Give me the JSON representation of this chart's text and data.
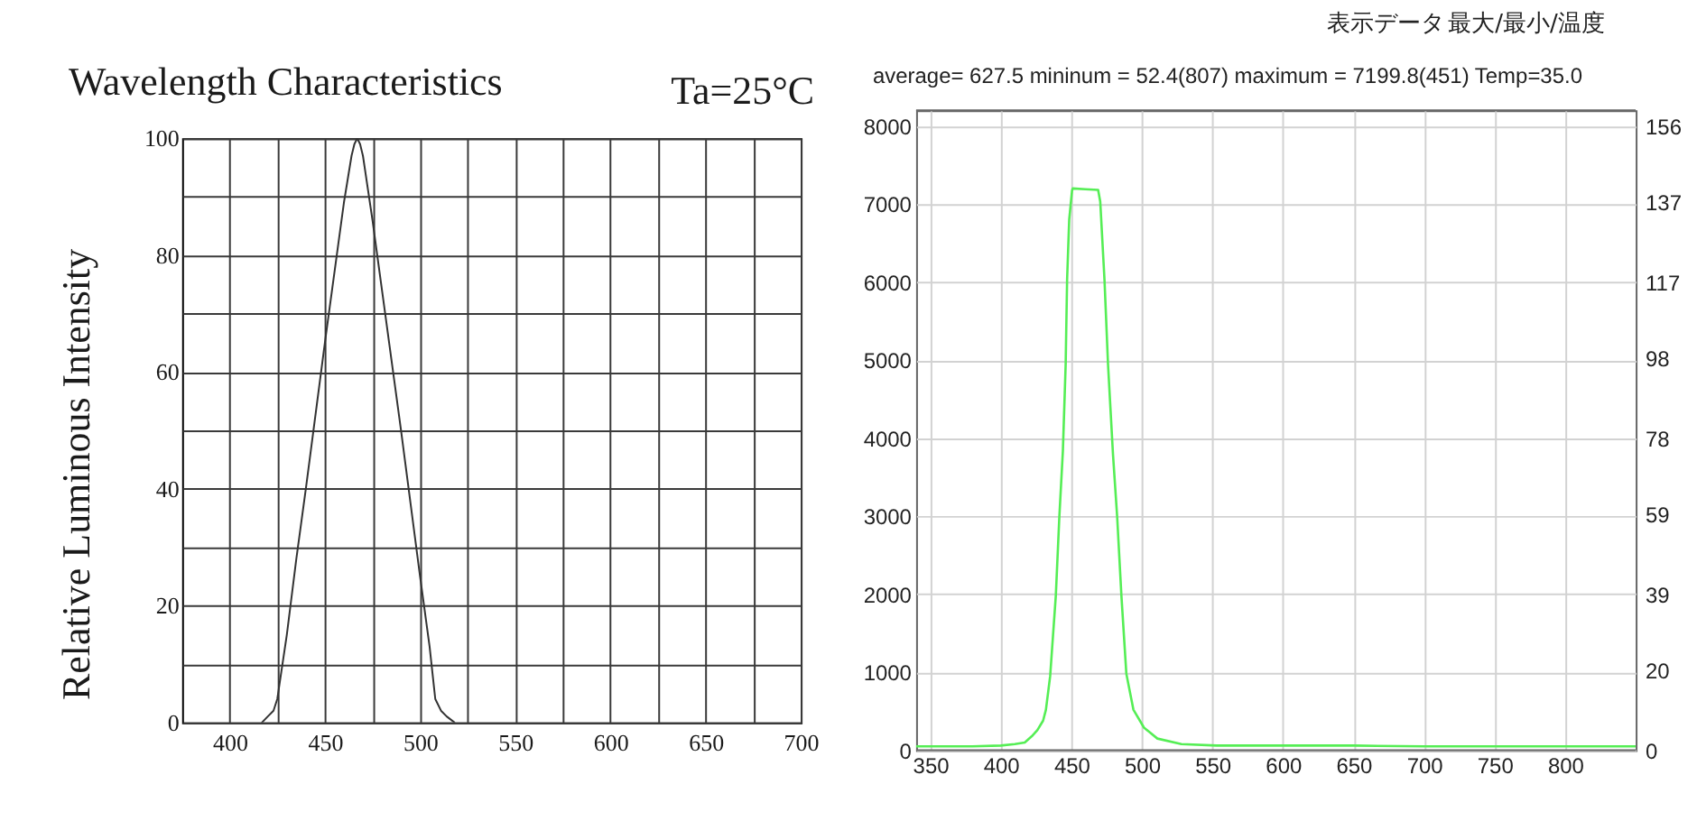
{
  "chart_data": [
    {
      "type": "line",
      "title": "Wavelength Characteristics",
      "ylabel": "Relative Luminous Intensity",
      "annotations": [
        "Ta=25°C"
      ],
      "x": [
        417,
        420,
        423,
        425,
        430,
        435,
        440,
        450,
        460,
        464,
        465.5,
        467,
        468.5,
        470,
        475,
        480,
        490,
        500,
        505,
        508,
        511,
        514,
        518
      ],
      "values": [
        0,
        1,
        2,
        4,
        15,
        28,
        40,
        65,
        89,
        97,
        99,
        100,
        99,
        97,
        86,
        74,
        50,
        25,
        13,
        4,
        2,
        1,
        0
      ],
      "color": "#333333",
      "xlim": [
        375,
        700
      ],
      "xticks": [
        400,
        {
          "value": 425,
          "label": null
        },
        450,
        {
          "value": 475,
          "label": null
        },
        500,
        {
          "value": 525,
          "label": null
        },
        550,
        {
          "value": 575,
          "label": null
        },
        600,
        {
          "value": 625,
          "label": null
        },
        650,
        {
          "value": 675,
          "label": null
        },
        700
      ],
      "ylim": [
        0,
        100
      ],
      "yticks": [
        0,
        {
          "value": 10,
          "label": null
        },
        20,
        {
          "value": 30,
          "label": null
        },
        40,
        {
          "value": 50,
          "label": null
        },
        60,
        {
          "value": 70,
          "label": null
        },
        80,
        {
          "value": 90,
          "label": null
        },
        100
      ],
      "grid": true
    },
    {
      "type": "line",
      "annotations": [
        "表示データ",
        "最大/最小/温度",
        "average= 627.5 mininum = 52.4(807) maximum = 7199.8(451) Temp=35.0"
      ],
      "x": [
        340,
        360,
        380,
        400,
        410,
        417,
        422,
        426,
        430,
        432,
        435,
        439,
        441.5,
        444,
        446,
        447,
        448.5,
        450.5,
        451,
        460,
        469,
        470.5,
        473.5,
        476,
        479.5,
        482.5,
        485.5,
        489,
        494,
        501.5,
        511,
        528,
        553,
        600,
        650,
        700,
        750,
        807,
        850
      ],
      "values": [
        50,
        50,
        50,
        60,
        80,
        100,
        180,
        260,
        380,
        520,
        950,
        1980,
        2990,
        3830,
        4950,
        6030,
        6800,
        7170,
        7200,
        7190,
        7180,
        7030,
        6030,
        4950,
        3800,
        2990,
        1980,
        980,
        520,
        290,
        150,
        80,
        60,
        60,
        60,
        50,
        50,
        50,
        50
      ],
      "color": "#55ee55",
      "xlim": [
        340,
        850
      ],
      "xticks": [
        350,
        400,
        450,
        500,
        550,
        600,
        650,
        700,
        750,
        800
      ],
      "ylim": [
        0,
        8200
      ],
      "yticks": [
        0,
        1000,
        2000,
        3000,
        4000,
        5000,
        6000,
        7000,
        8000
      ],
      "y2lim": [
        0,
        160
      ],
      "y2ticks": [
        0,
        20,
        39,
        59,
        78,
        98,
        117,
        137,
        156
      ],
      "grid": true
    }
  ]
}
